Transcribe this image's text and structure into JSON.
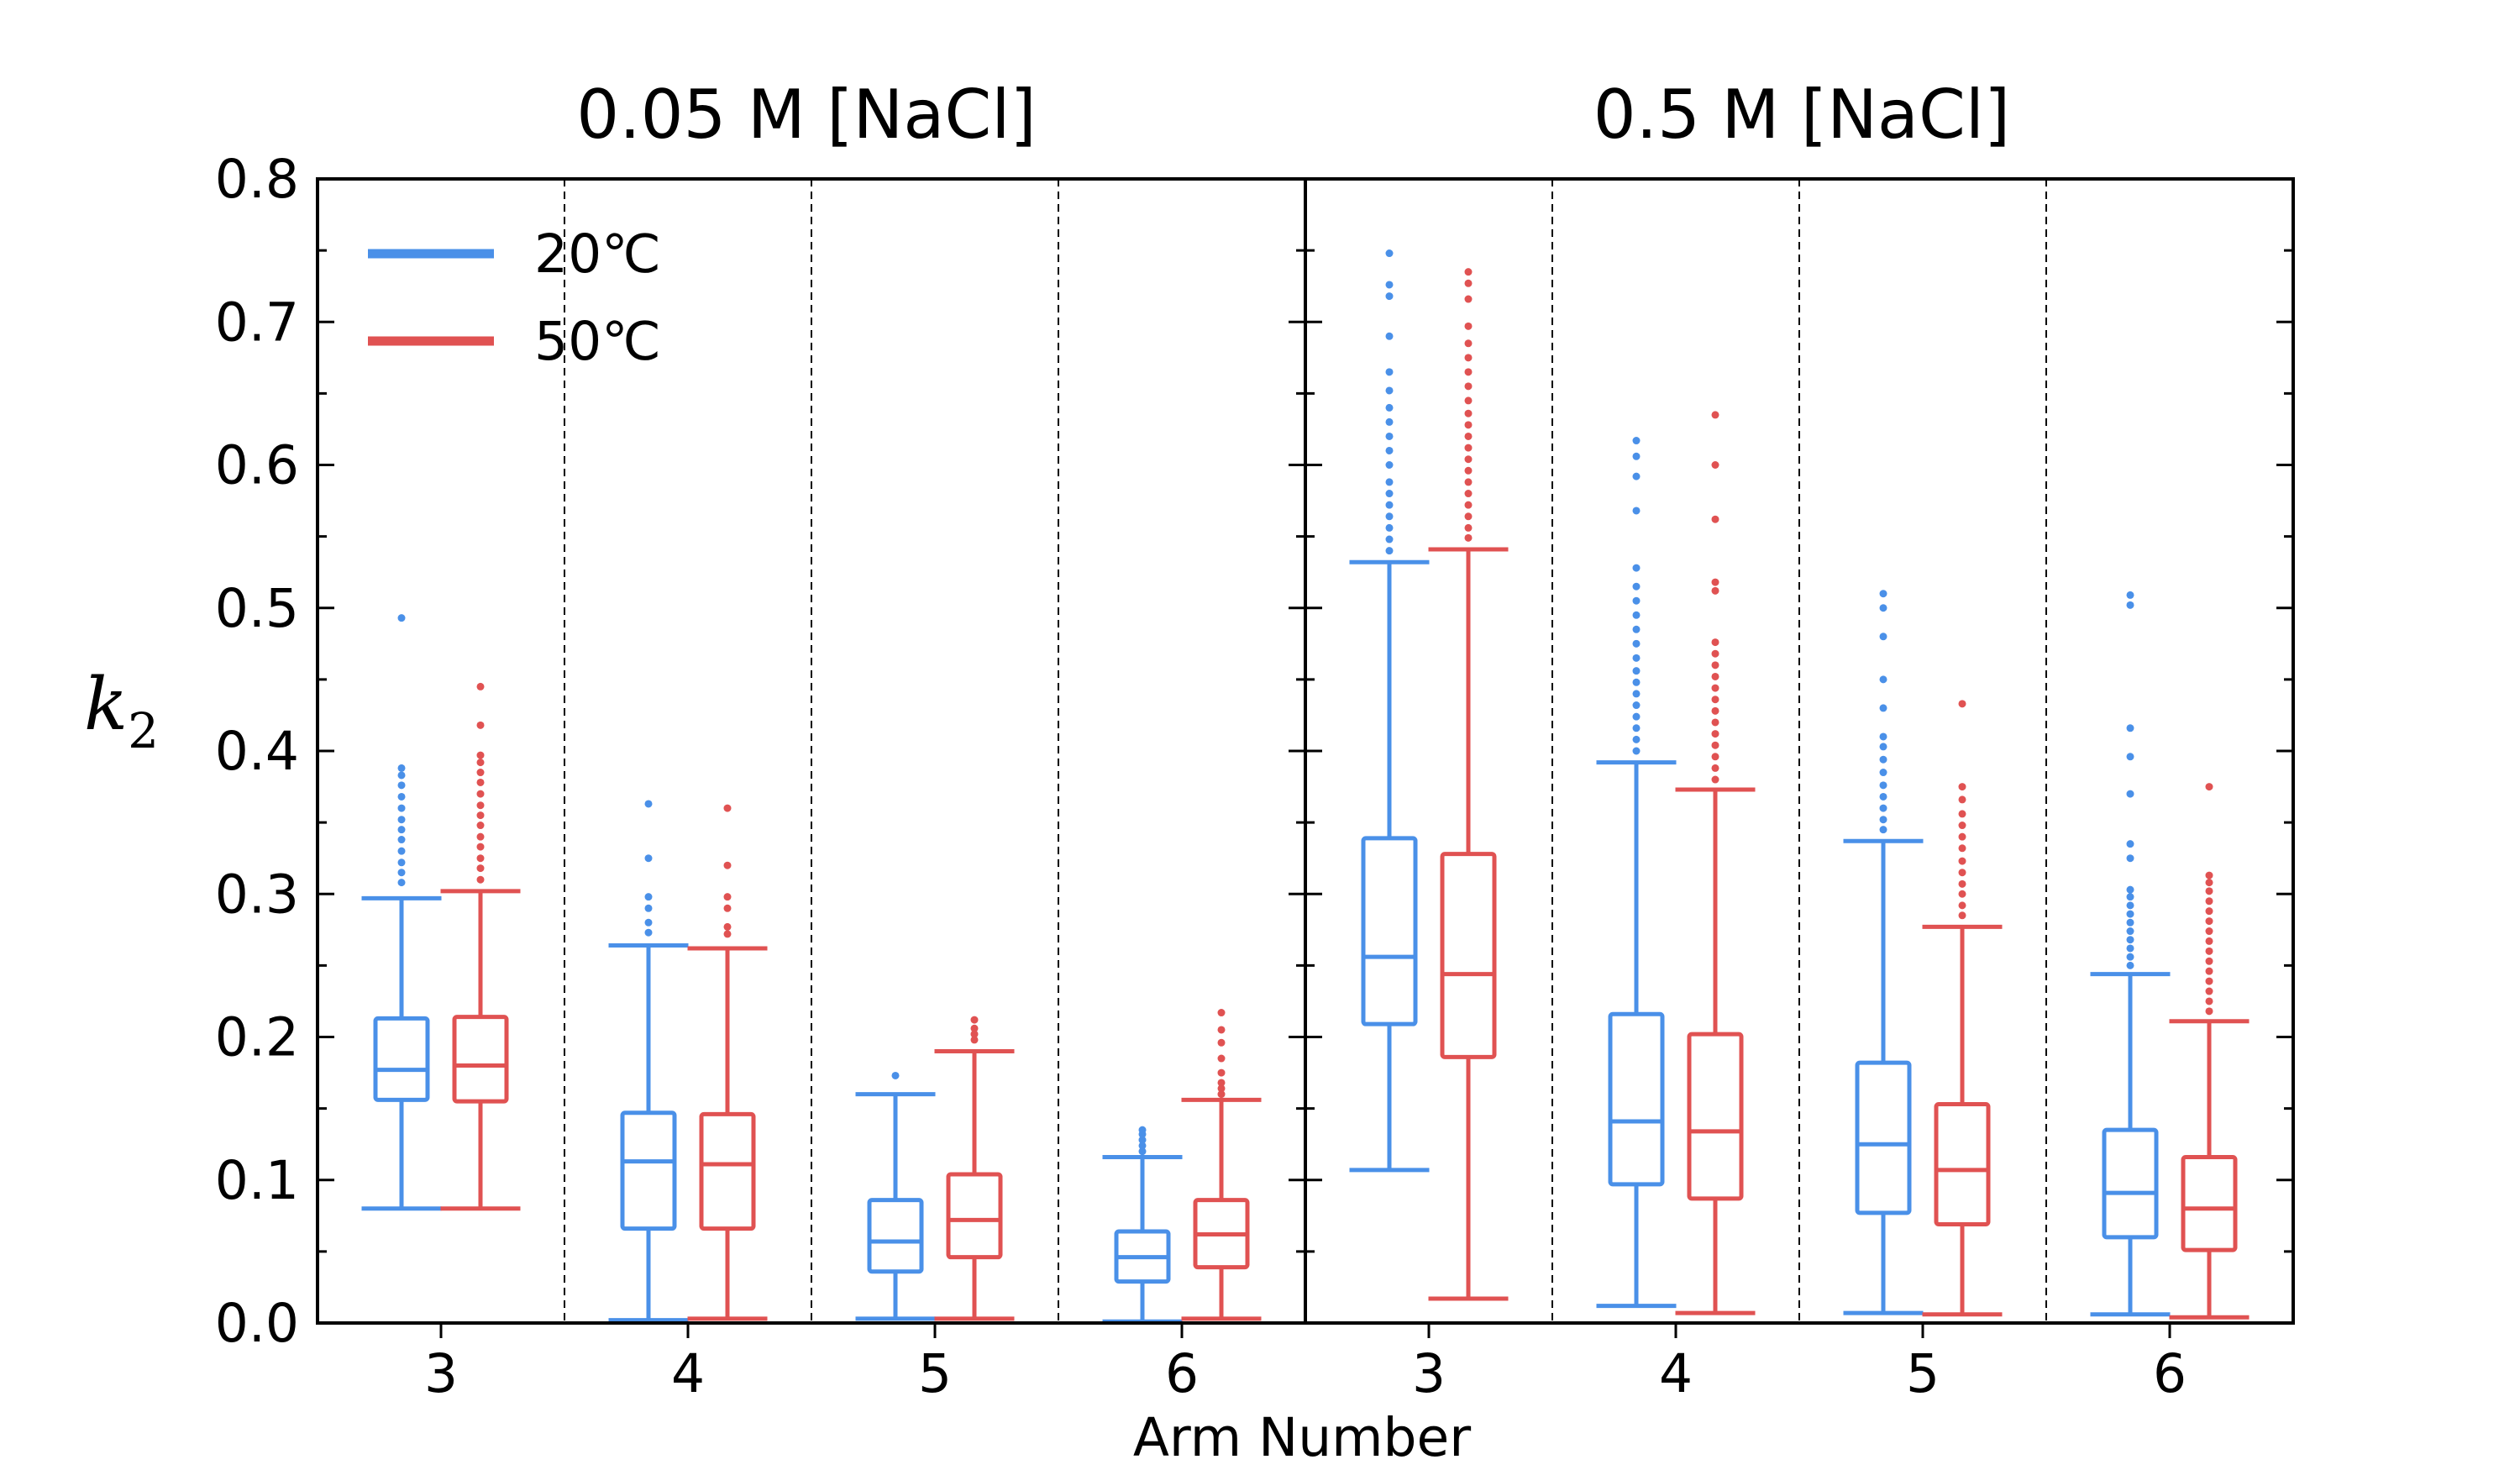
{
  "chart_data": {
    "type": "box",
    "titles": [
      "0.05 M [NaCl]",
      "0.5 M [NaCl]"
    ],
    "xlabel": "Arm Number",
    "ylabel": "k",
    "ylabel_subscript": "2",
    "ylim": [
      0,
      0.8
    ],
    "y_ticks": [
      "0.0",
      "0.1",
      "0.2",
      "0.3",
      "0.4",
      "0.5",
      "0.6",
      "0.7",
      "0.8"
    ],
    "categories": [
      "3",
      "4",
      "5",
      "6"
    ],
    "legend": {
      "position": "top-left",
      "entries": [
        "20℃",
        "50℃"
      ]
    },
    "colors": {
      "20℃": "#4a90e8",
      "50℃": "#e05252"
    },
    "panels": [
      {
        "title": "0.05 M [NaCl]",
        "series": [
          {
            "name": "20℃",
            "boxes": [
              {
                "category": "3",
                "whislo": 0.08,
                "q1": 0.156,
                "median": 0.177,
                "q3": 0.213,
                "whishi": 0.297,
                "fliers": [
                  0.308,
                  0.315,
                  0.322,
                  0.33,
                  0.338,
                  0.345,
                  0.352,
                  0.36,
                  0.368,
                  0.376,
                  0.383,
                  0.388,
                  0.493
                ]
              },
              {
                "category": "4",
                "whislo": 0.002,
                "q1": 0.066,
                "median": 0.113,
                "q3": 0.147,
                "whishi": 0.264,
                "fliers": [
                  0.273,
                  0.28,
                  0.29,
                  0.298,
                  0.325,
                  0.363
                ]
              },
              {
                "category": "5",
                "whislo": 0.003,
                "q1": 0.036,
                "median": 0.057,
                "q3": 0.086,
                "whishi": 0.16,
                "fliers": [
                  0.173
                ]
              },
              {
                "category": "6",
                "whislo": 0.001,
                "q1": 0.029,
                "median": 0.046,
                "q3": 0.064,
                "whishi": 0.116,
                "fliers": [
                  0.12,
                  0.124,
                  0.128,
                  0.132,
                  0.135
                ]
              }
            ]
          },
          {
            "name": "50℃",
            "boxes": [
              {
                "category": "3",
                "whislo": 0.08,
                "q1": 0.155,
                "median": 0.18,
                "q3": 0.214,
                "whishi": 0.302,
                "fliers": [
                  0.31,
                  0.318,
                  0.325,
                  0.333,
                  0.34,
                  0.348,
                  0.355,
                  0.362,
                  0.37,
                  0.378,
                  0.385,
                  0.392,
                  0.397,
                  0.418,
                  0.445
                ]
              },
              {
                "category": "4",
                "whislo": 0.003,
                "q1": 0.066,
                "median": 0.111,
                "q3": 0.146,
                "whishi": 0.262,
                "fliers": [
                  0.272,
                  0.277,
                  0.29,
                  0.298,
                  0.32,
                  0.36
                ]
              },
              {
                "category": "5",
                "whislo": 0.003,
                "q1": 0.046,
                "median": 0.072,
                "q3": 0.104,
                "whishi": 0.19,
                "fliers": [
                  0.198,
                  0.202,
                  0.206,
                  0.212
                ]
              },
              {
                "category": "6",
                "whislo": 0.003,
                "q1": 0.039,
                "median": 0.062,
                "q3": 0.086,
                "whishi": 0.156,
                "fliers": [
                  0.16,
                  0.164,
                  0.168,
                  0.175,
                  0.185,
                  0.196,
                  0.205,
                  0.217
                ]
              }
            ]
          }
        ]
      },
      {
        "title": "0.5 M [NaCl]",
        "series": [
          {
            "name": "20℃",
            "boxes": [
              {
                "category": "3",
                "whislo": 0.107,
                "q1": 0.209,
                "median": 0.256,
                "q3": 0.339,
                "whishi": 0.532,
                "fliers": [
                  0.54,
                  0.548,
                  0.556,
                  0.564,
                  0.572,
                  0.58,
                  0.588,
                  0.6,
                  0.61,
                  0.62,
                  0.63,
                  0.64,
                  0.652,
                  0.665,
                  0.69,
                  0.718,
                  0.726,
                  0.748
                ]
              },
              {
                "category": "4",
                "whislo": 0.012,
                "q1": 0.097,
                "median": 0.141,
                "q3": 0.216,
                "whishi": 0.392,
                "fliers": [
                  0.4,
                  0.408,
                  0.416,
                  0.424,
                  0.432,
                  0.44,
                  0.448,
                  0.456,
                  0.465,
                  0.475,
                  0.485,
                  0.495,
                  0.505,
                  0.515,
                  0.528,
                  0.568,
                  0.592,
                  0.606,
                  0.617
                ]
              },
              {
                "category": "5",
                "whislo": 0.007,
                "q1": 0.077,
                "median": 0.125,
                "q3": 0.182,
                "whishi": 0.337,
                "fliers": [
                  0.345,
                  0.352,
                  0.36,
                  0.368,
                  0.376,
                  0.385,
                  0.394,
                  0.403,
                  0.41,
                  0.43,
                  0.45,
                  0.48,
                  0.5,
                  0.51
                ]
              },
              {
                "category": "6",
                "whislo": 0.006,
                "q1": 0.06,
                "median": 0.091,
                "q3": 0.135,
                "whishi": 0.244,
                "fliers": [
                  0.25,
                  0.256,
                  0.262,
                  0.268,
                  0.274,
                  0.28,
                  0.286,
                  0.292,
                  0.298,
                  0.303,
                  0.325,
                  0.335,
                  0.37,
                  0.396,
                  0.416,
                  0.502,
                  0.509
                ]
              }
            ]
          },
          {
            "name": "50℃",
            "boxes": [
              {
                "category": "3",
                "whislo": 0.017,
                "q1": 0.186,
                "median": 0.244,
                "q3": 0.328,
                "whishi": 0.541,
                "fliers": [
                  0.549,
                  0.556,
                  0.564,
                  0.572,
                  0.58,
                  0.588,
                  0.596,
                  0.604,
                  0.612,
                  0.62,
                  0.628,
                  0.636,
                  0.645,
                  0.655,
                  0.665,
                  0.675,
                  0.685,
                  0.697,
                  0.716,
                  0.727,
                  0.735
                ]
              },
              {
                "category": "4",
                "whislo": 0.007,
                "q1": 0.087,
                "median": 0.134,
                "q3": 0.202,
                "whishi": 0.373,
                "fliers": [
                  0.38,
                  0.388,
                  0.396,
                  0.404,
                  0.412,
                  0.42,
                  0.428,
                  0.436,
                  0.444,
                  0.452,
                  0.46,
                  0.468,
                  0.476,
                  0.512,
                  0.518,
                  0.562,
                  0.6,
                  0.635
                ]
              },
              {
                "category": "5",
                "whislo": 0.006,
                "q1": 0.069,
                "median": 0.107,
                "q3": 0.153,
                "whishi": 0.277,
                "fliers": [
                  0.285,
                  0.292,
                  0.3,
                  0.307,
                  0.315,
                  0.323,
                  0.332,
                  0.34,
                  0.348,
                  0.356,
                  0.366,
                  0.375,
                  0.433
                ]
              },
              {
                "category": "6",
                "whislo": 0.004,
                "q1": 0.051,
                "median": 0.08,
                "q3": 0.116,
                "whishi": 0.211,
                "fliers": [
                  0.218,
                  0.225,
                  0.232,
                  0.239,
                  0.246,
                  0.253,
                  0.26,
                  0.267,
                  0.274,
                  0.281,
                  0.288,
                  0.295,
                  0.302,
                  0.308,
                  0.313,
                  0.375
                ]
              }
            ]
          }
        ]
      }
    ]
  }
}
